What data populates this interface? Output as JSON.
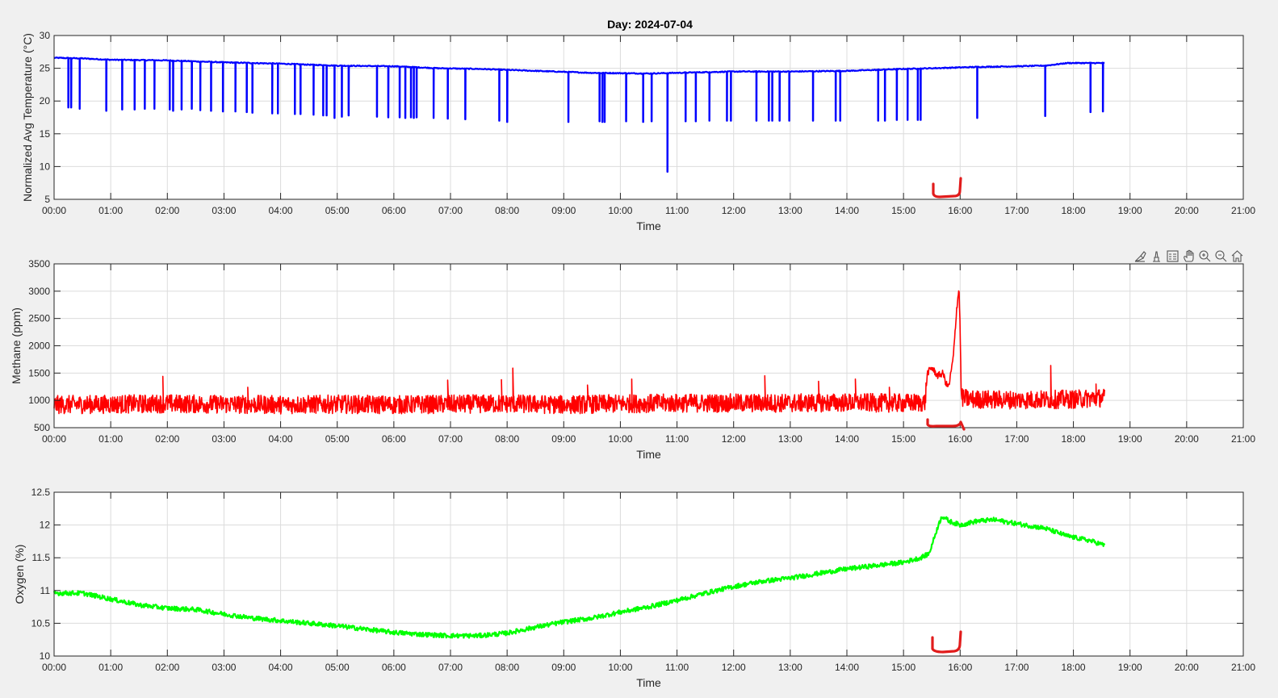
{
  "figure": {
    "background": "#f0f0f0",
    "toolbar": [
      "brush-icon",
      "data-tip-icon",
      "legend-icon",
      "pan-icon",
      "zoom-in-icon",
      "zoom-out-icon",
      "home-icon"
    ]
  },
  "chart_data": [
    {
      "type": "line",
      "title": "Day: 2024-07-04",
      "xlabel": "Time",
      "ylabel": "Normalized Avg Temperature (°C)",
      "xlim_hours": [
        0,
        21
      ],
      "ylim": [
        5,
        30
      ],
      "xticks": [
        "00:00",
        "01:00",
        "02:00",
        "03:00",
        "04:00",
        "05:00",
        "06:00",
        "07:00",
        "08:00",
        "09:00",
        "10:00",
        "11:00",
        "12:00",
        "13:00",
        "14:00",
        "15:00",
        "16:00",
        "17:00",
        "18:00",
        "19:00",
        "20:00",
        "21:00"
      ],
      "yticks": [
        5,
        10,
        15,
        20,
        25,
        30
      ],
      "grid": true,
      "color": "#0000ff",
      "series": [
        {
          "baseline_points": [
            [
              0,
              26.6
            ],
            [
              0.5,
              26.5
            ],
            [
              1,
              26.3
            ],
            [
              2,
              26.2
            ],
            [
              3,
              25.9
            ],
            [
              4,
              25.7
            ],
            [
              5,
              25.4
            ],
            [
              6,
              25.3
            ],
            [
              6.8,
              25.0
            ],
            [
              7.5,
              24.9
            ],
            [
              8.5,
              24.6
            ],
            [
              9.5,
              24.3
            ],
            [
              10.5,
              24.2
            ],
            [
              11,
              24.3
            ],
            [
              12,
              24.5
            ],
            [
              13,
              24.5
            ],
            [
              14,
              24.6
            ],
            [
              15,
              24.9
            ],
            [
              15.5,
              25.0
            ],
            [
              15.9,
              25.1
            ],
            [
              16.3,
              25.2
            ],
            [
              17,
              25.3
            ],
            [
              17.5,
              25.4
            ],
            [
              17.9,
              25.8
            ],
            [
              18.55,
              25.8
            ]
          ],
          "drop_events": [
            [
              0.25,
              19.0
            ],
            [
              0.3,
              19.0
            ],
            [
              0.45,
              18.8
            ],
            [
              0.92,
              18.5
            ],
            [
              1.2,
              18.7
            ],
            [
              1.42,
              18.7
            ],
            [
              1.6,
              18.8
            ],
            [
              1.77,
              18.8
            ],
            [
              2.04,
              18.7
            ],
            [
              2.1,
              18.5
            ],
            [
              2.25,
              18.7
            ],
            [
              2.43,
              18.8
            ],
            [
              2.58,
              18.6
            ],
            [
              2.77,
              18.5
            ],
            [
              2.98,
              18.4
            ],
            [
              3.2,
              18.4
            ],
            [
              3.4,
              18.3
            ],
            [
              3.5,
              18.2
            ],
            [
              3.85,
              18.1
            ],
            [
              3.95,
              18.1
            ],
            [
              4.25,
              18.0
            ],
            [
              4.35,
              18.0
            ],
            [
              4.58,
              17.9
            ],
            [
              4.75,
              17.8
            ],
            [
              4.81,
              17.8
            ],
            [
              4.95,
              17.4
            ],
            [
              5.08,
              17.6
            ],
            [
              5.2,
              17.8
            ],
            [
              5.7,
              17.6
            ],
            [
              5.9,
              17.5
            ],
            [
              6.1,
              17.5
            ],
            [
              6.2,
              17.4
            ],
            [
              6.3,
              17.5
            ],
            [
              6.35,
              17.4
            ],
            [
              6.4,
              17.5
            ],
            [
              6.7,
              17.4
            ],
            [
              6.95,
              17.3
            ],
            [
              7.26,
              17.2
            ],
            [
              7.86,
              17.0
            ],
            [
              8.0,
              16.8
            ],
            [
              9.08,
              16.8
            ],
            [
              9.63,
              16.9
            ],
            [
              9.68,
              16.8
            ],
            [
              9.72,
              16.8
            ],
            [
              10.1,
              16.9
            ],
            [
              10.4,
              16.8
            ],
            [
              10.55,
              16.9
            ],
            [
              10.83,
              9.2
            ],
            [
              11.15,
              16.9
            ],
            [
              11.33,
              16.9
            ],
            [
              11.57,
              17.0
            ],
            [
              11.88,
              17.0
            ],
            [
              11.95,
              17.0
            ],
            [
              12.4,
              17.0
            ],
            [
              12.62,
              17.0
            ],
            [
              12.68,
              17.0
            ],
            [
              12.81,
              17.0
            ],
            [
              12.98,
              17.0
            ],
            [
              13.4,
              17.0
            ],
            [
              13.8,
              17.0
            ],
            [
              13.88,
              17.0
            ],
            [
              14.55,
              17.0
            ],
            [
              14.67,
              17.0
            ],
            [
              14.88,
              17.1
            ],
            [
              15.07,
              17.1
            ],
            [
              15.25,
              17.1
            ],
            [
              15.3,
              17.1
            ],
            [
              16.3,
              17.4
            ],
            [
              17.5,
              17.7
            ],
            [
              18.3,
              18.3
            ],
            [
              18.52,
              18.4
            ]
          ]
        }
      ]
    },
    {
      "type": "line",
      "title": "",
      "xlabel": "Time",
      "ylabel": "Methane (ppm)",
      "xlim_hours": [
        0,
        21
      ],
      "ylim": [
        500,
        3500
      ],
      "xticks": [
        "00:00",
        "01:00",
        "02:00",
        "03:00",
        "04:00",
        "05:00",
        "06:00",
        "07:00",
        "08:00",
        "09:00",
        "10:00",
        "11:00",
        "12:00",
        "13:00",
        "14:00",
        "15:00",
        "16:00",
        "17:00",
        "18:00",
        "19:00",
        "20:00",
        "21:00"
      ],
      "yticks": [
        500,
        1000,
        1500,
        2000,
        2500,
        3000,
        3500
      ],
      "grid": true,
      "color": "#ff0000",
      "series": [
        {
          "baseline_points": [
            [
              0,
              920
            ],
            [
              1,
              930
            ],
            [
              2,
              940
            ],
            [
              3,
              930
            ],
            [
              4,
              920
            ],
            [
              5,
              930
            ],
            [
              6,
              920
            ],
            [
              7,
              930
            ],
            [
              8,
              940
            ],
            [
              9,
              920
            ],
            [
              10,
              940
            ],
            [
              11,
              950
            ],
            [
              12,
              950
            ],
            [
              13,
              950
            ],
            [
              14,
              960
            ],
            [
              15,
              950
            ],
            [
              15.38,
              960
            ],
            [
              15.42,
              1500
            ],
            [
              15.5,
              1600
            ],
            [
              15.6,
              1450
            ],
            [
              15.7,
              1500
            ],
            [
              15.75,
              1300
            ],
            [
              15.8,
              1250
            ],
            [
              15.88,
              1800
            ],
            [
              15.94,
              2700
            ],
            [
              15.98,
              3050
            ],
            [
              16.0,
              2300
            ],
            [
              16.02,
              1050
            ],
            [
              16.2,
              1020
            ],
            [
              17,
              1010
            ],
            [
              18,
              1020
            ],
            [
              18.55,
              1050
            ]
          ],
          "noise_amplitude": 170,
          "spikes": [
            [
              1.92,
              1440
            ],
            [
              3.42,
              1240
            ],
            [
              6.95,
              1370
            ],
            [
              7.9,
              1380
            ],
            [
              8.1,
              1590
            ],
            [
              9.42,
              1280
            ],
            [
              10.2,
              1390
            ],
            [
              12.55,
              1450
            ],
            [
              13.5,
              1350
            ],
            [
              14.15,
              1390
            ],
            [
              14.75,
              1240
            ],
            [
              17.6,
              1640
            ],
            [
              18.4,
              1300
            ]
          ]
        }
      ]
    },
    {
      "type": "line",
      "title": "",
      "xlabel": "Time",
      "ylabel": "Oxygen (%)",
      "xlim_hours": [
        0,
        21
      ],
      "ylim": [
        10,
        12.5
      ],
      "xticks": [
        "00:00",
        "01:00",
        "02:00",
        "03:00",
        "04:00",
        "05:00",
        "06:00",
        "07:00",
        "08:00",
        "09:00",
        "10:00",
        "11:00",
        "12:00",
        "13:00",
        "14:00",
        "15:00",
        "16:00",
        "17:00",
        "18:00",
        "19:00",
        "20:00",
        "21:00"
      ],
      "yticks": [
        10,
        10.5,
        11,
        11.5,
        12,
        12.5
      ],
      "grid": true,
      "color": "#00ff00",
      "series": [
        {
          "baseline_points": [
            [
              0,
              10.96
            ],
            [
              0.5,
              10.96
            ],
            [
              1,
              10.87
            ],
            [
              1.5,
              10.78
            ],
            [
              2,
              10.73
            ],
            [
              2.5,
              10.71
            ],
            [
              3,
              10.64
            ],
            [
              3.5,
              10.58
            ],
            [
              4,
              10.54
            ],
            [
              4.5,
              10.5
            ],
            [
              5,
              10.46
            ],
            [
              5.5,
              10.41
            ],
            [
              6,
              10.36
            ],
            [
              6.5,
              10.33
            ],
            [
              7,
              10.31
            ],
            [
              7.5,
              10.31
            ],
            [
              8,
              10.35
            ],
            [
              8.5,
              10.44
            ],
            [
              9,
              10.52
            ],
            [
              9.5,
              10.58
            ],
            [
              10,
              10.67
            ],
            [
              10.5,
              10.75
            ],
            [
              11,
              10.85
            ],
            [
              11.5,
              10.96
            ],
            [
              12,
              11.06
            ],
            [
              12.5,
              11.14
            ],
            [
              13,
              11.19
            ],
            [
              13.5,
              11.26
            ],
            [
              14,
              11.33
            ],
            [
              14.5,
              11.38
            ],
            [
              15,
              11.43
            ],
            [
              15.3,
              11.5
            ],
            [
              15.45,
              11.56
            ],
            [
              15.6,
              11.96
            ],
            [
              15.68,
              12.14
            ],
            [
              15.8,
              12.06
            ],
            [
              16,
              12.0
            ],
            [
              16.3,
              12.06
            ],
            [
              16.6,
              12.08
            ],
            [
              17,
              12.02
            ],
            [
              17.5,
              11.95
            ],
            [
              17.9,
              11.83
            ],
            [
              18.3,
              11.76
            ],
            [
              18.55,
              11.69
            ]
          ],
          "noise_amplitude": 0.035
        }
      ]
    }
  ]
}
